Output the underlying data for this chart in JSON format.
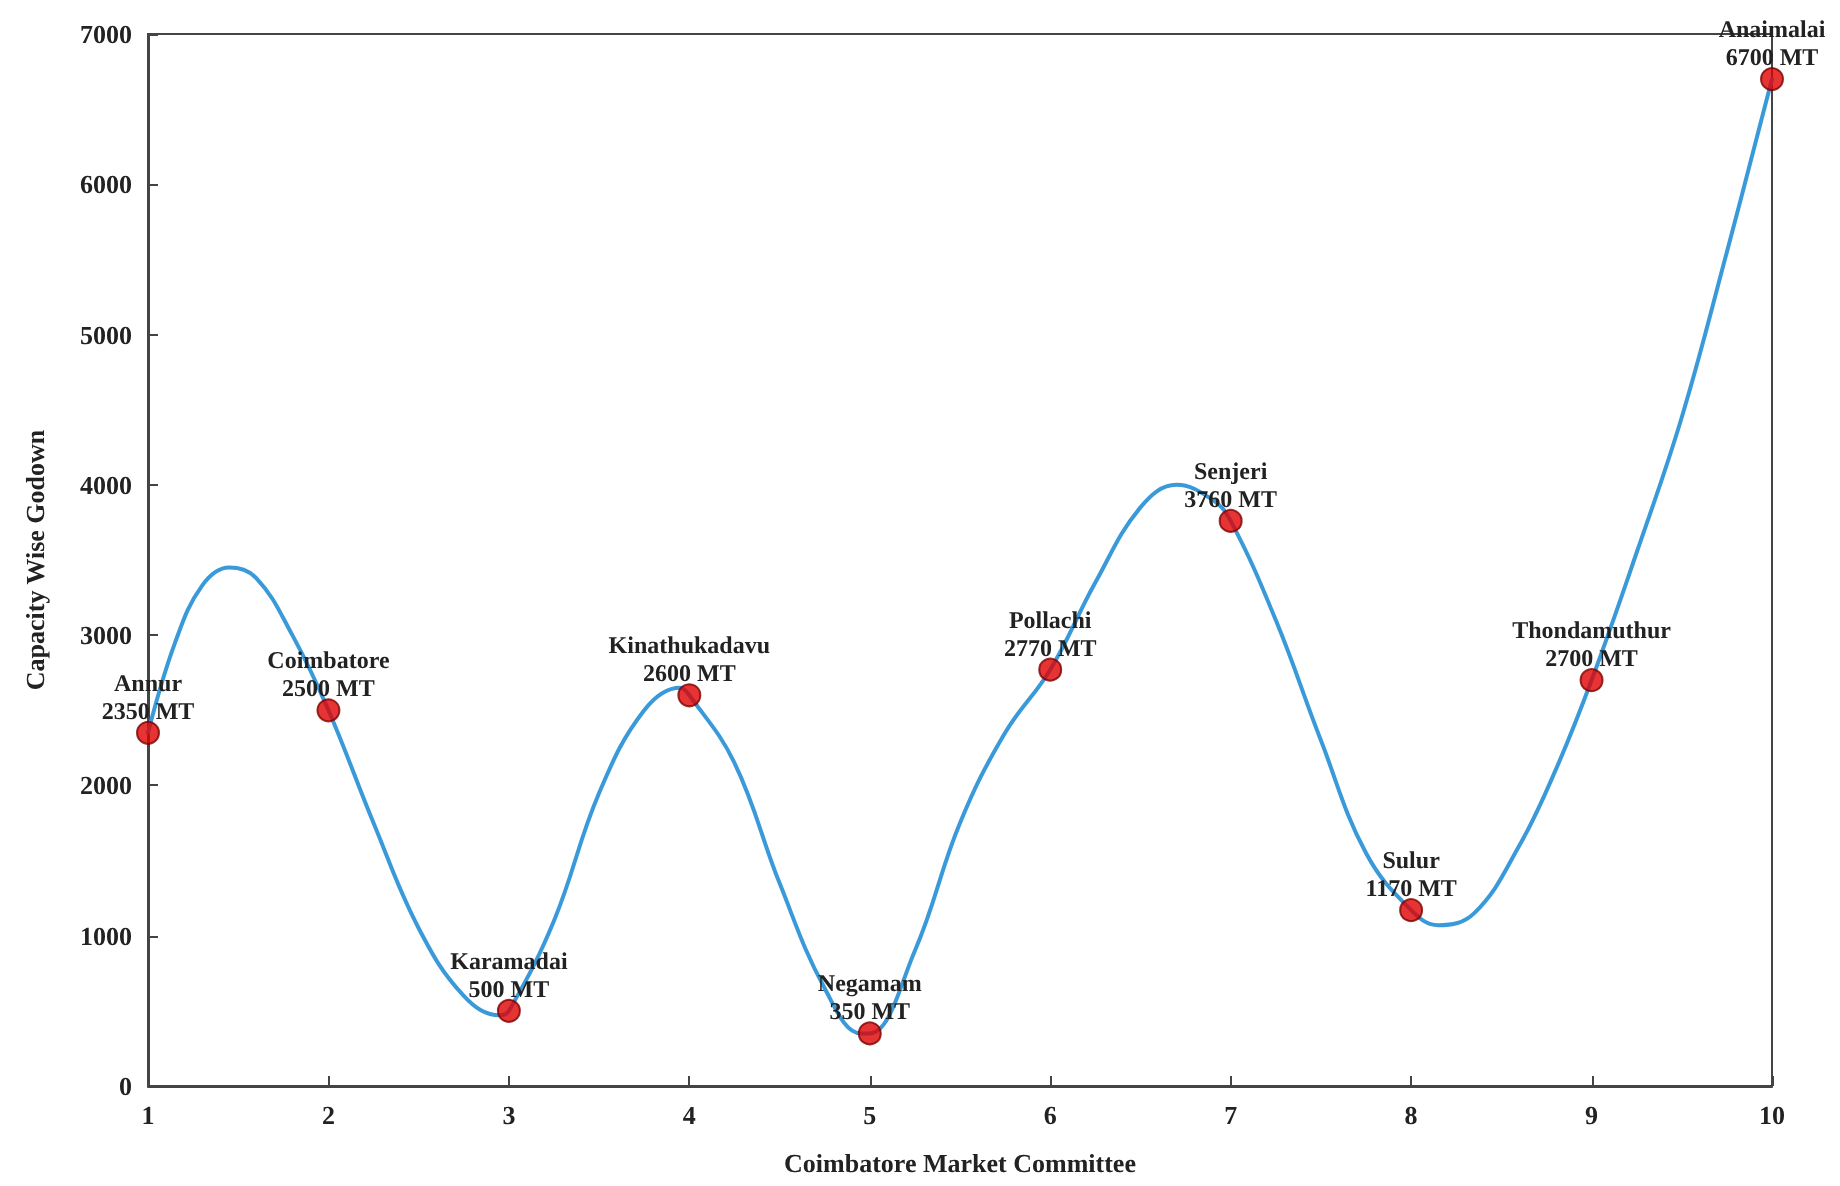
{
  "chart_data": {
    "type": "line",
    "xlabel": "Coimbatore Market Committee",
    "ylabel": "Capacity Wise Godown",
    "xlim": [
      1,
      10
    ],
    "xticks": [
      1,
      2,
      3,
      4,
      5,
      6,
      7,
      8,
      9,
      10
    ],
    "ylim": [
      0,
      7000
    ],
    "yticks": [
      0,
      1000,
      2000,
      3000,
      4000,
      5000,
      6000,
      7000
    ],
    "grid": false,
    "series": [
      {
        "color": "#3a9ad9",
        "marker": "none",
        "line_style": "solid",
        "x": [
          1,
          1.15,
          1.3,
          1.45,
          1.6,
          1.8,
          2,
          2.25,
          2.5,
          2.75,
          2.95,
          3,
          3.25,
          3.5,
          3.75,
          3.95,
          4,
          4.25,
          4.5,
          4.75,
          4.95,
          5,
          5.25,
          5.5,
          5.75,
          6,
          6.25,
          6.5,
          6.7,
          6.9,
          7,
          7.25,
          7.5,
          7.75,
          8,
          8.15,
          8.35,
          8.6,
          8.8,
          9,
          9.25,
          9.5,
          9.75,
          10
        ],
        "values": [
          2350,
          2950,
          3330,
          3450,
          3380,
          3000,
          2500,
          1750,
          1050,
          600,
          470,
          500,
          1100,
          1950,
          2500,
          2650,
          2600,
          2150,
          1350,
          650,
          350,
          350,
          900,
          1750,
          2350,
          2770,
          3350,
          3850,
          4000,
          3900,
          3760,
          3100,
          2300,
          1550,
          1170,
          1070,
          1150,
          1600,
          2100,
          2700,
          3550,
          4450,
          5550,
          6700
        ]
      },
      {
        "type": "scatter",
        "color": "#e00000",
        "marker": "circle",
        "x": [
          1,
          2,
          3,
          4,
          5,
          6,
          7,
          8,
          9,
          10
        ],
        "values": [
          2350,
          2500,
          500,
          2600,
          350,
          2770,
          3760,
          1170,
          2700,
          6700
        ]
      }
    ],
    "annotations": [
      {
        "text": "Annur\n2350 MT",
        "x": 1,
        "y": 2350
      },
      {
        "text": "Coimbatore\n2500 MT",
        "x": 2,
        "y": 2500
      },
      {
        "text": "Karamadai\n500 MT",
        "x": 3,
        "y": 500
      },
      {
        "text": "Kinathukadavu\n2600 MT",
        "x": 4,
        "y": 2600
      },
      {
        "text": "Negamam\n350 MT",
        "x": 5,
        "y": 350
      },
      {
        "text": "Pollachi\n2770 MT",
        "x": 6,
        "y": 2770
      },
      {
        "text": "Senjeri\n3760 MT",
        "x": 7,
        "y": 3760
      },
      {
        "text": "Sulur\n1170 MT",
        "x": 8,
        "y": 1170
      },
      {
        "text": "Thondamuthur\n2700 MT",
        "x": 9,
        "y": 2700
      },
      {
        "text": "Anaimalai\n6700 MT",
        "x": 10,
        "y": 6700
      }
    ]
  }
}
